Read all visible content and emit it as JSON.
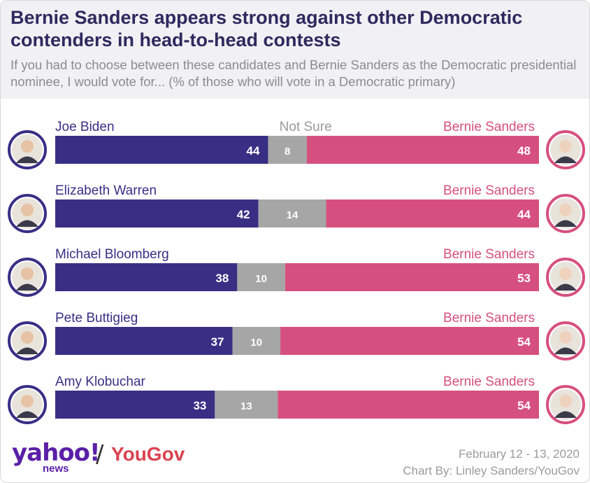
{
  "title": "Bernie Sanders appears strong against other Democratic contenders in head-to-head contests",
  "subtitle": "If you had to choose between these candidates and Bernie Sanders as the Democratic presidential nominee, I would vote for... (% of those who will vote in a Democratic primary)",
  "footer": {
    "logo_yahoo": "yahoo!",
    "logo_news": "news",
    "logo_slash": "/",
    "logo_yougov": "YouGov",
    "date": "February 12 - 13, 2020",
    "credit": "Chart By: Linley Sanders/YouGov"
  },
  "colors": {
    "candidate": "#382f85",
    "not_sure": "#a6a6a6",
    "sanders": "#d6507f",
    "title": "#2e2a5f",
    "subtitle": "#8c8c8c"
  },
  "chart_data": {
    "type": "bar",
    "stacked": true,
    "orientation": "horizontal",
    "not_sure_label": "Not Sure",
    "opponent_label": "Bernie Sanders",
    "categories": [
      "Joe Biden",
      "Elizabeth Warren",
      "Michael Bloomberg",
      "Pete Buttigieg",
      "Amy Klobuchar"
    ],
    "series": [
      {
        "name": "Candidate",
        "values": [
          44,
          42,
          38,
          37,
          33
        ]
      },
      {
        "name": "Not Sure",
        "values": [
          8,
          14,
          10,
          10,
          13
        ]
      },
      {
        "name": "Bernie Sanders",
        "values": [
          48,
          44,
          53,
          54,
          54
        ]
      }
    ]
  }
}
